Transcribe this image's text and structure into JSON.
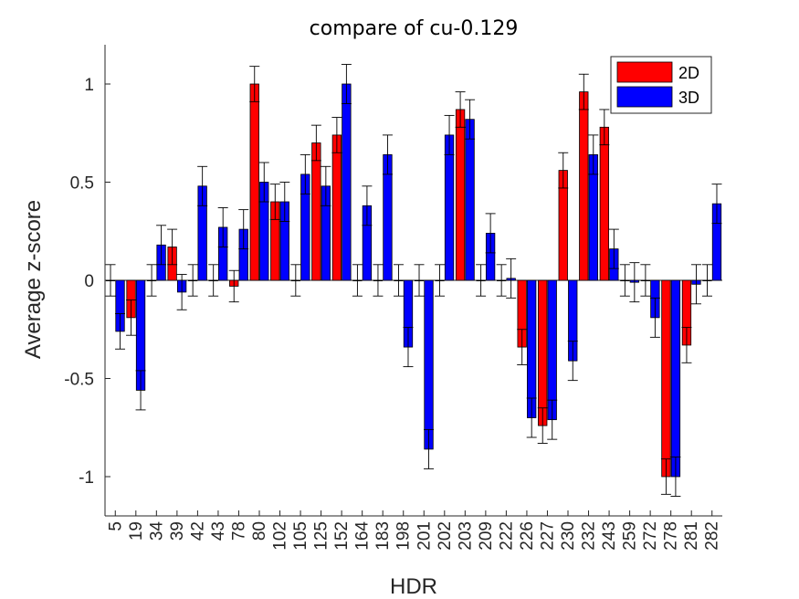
{
  "chart_data": {
    "type": "bar",
    "title": "compare of cu-0.129",
    "xlabel": "HDR",
    "ylabel": "Average z-score",
    "ylim": [
      -1.2,
      1.2
    ],
    "yticks": [
      -1,
      -0.5,
      0,
      0.5,
      1
    ],
    "ytick_labels": [
      "-1",
      "-0.5",
      "0",
      "0.5",
      "1"
    ],
    "grid": false,
    "legend_position": "top-right",
    "categories": [
      "5",
      "19",
      "34",
      "39",
      "42",
      "43",
      "78",
      "80",
      "102",
      "105",
      "125",
      "152",
      "164",
      "183",
      "198",
      "201",
      "202",
      "203",
      "209",
      "222",
      "226",
      "227",
      "230",
      "232",
      "243",
      "259",
      "272",
      "278",
      "281",
      "282"
    ],
    "series": [
      {
        "name": "2D",
        "color": "#ff0000",
        "values": [
          0,
          -0.19,
          0,
          0.17,
          0,
          0,
          -0.03,
          1.0,
          0.4,
          0,
          0.7,
          0.74,
          0,
          0,
          0,
          0,
          0,
          0.87,
          0,
          0,
          -0.34,
          -0.74,
          0.56,
          0.96,
          0.78,
          0,
          0,
          -1.0,
          -0.33,
          0
        ],
        "errors": [
          0.08,
          0.09,
          0.08,
          0.09,
          0.08,
          0.08,
          0.08,
          0.09,
          0.09,
          0.08,
          0.09,
          0.09,
          0.08,
          0.08,
          0.08,
          0.08,
          0.08,
          0.09,
          0.08,
          0.08,
          0.09,
          0.09,
          0.09,
          0.09,
          0.09,
          0.08,
          0.08,
          0.09,
          0.09,
          0.08
        ]
      },
      {
        "name": "3D",
        "color": "#0000ff",
        "values": [
          -0.26,
          -0.56,
          0.18,
          -0.06,
          0.48,
          0.27,
          0.26,
          0.5,
          0.4,
          0.54,
          0.48,
          1.0,
          0.38,
          0.64,
          -0.34,
          -0.86,
          0.74,
          0.82,
          0.24,
          0.01,
          -0.7,
          -0.71,
          -0.41,
          0.64,
          0.16,
          -0.01,
          -0.19,
          -1.0,
          -0.02,
          0.39
        ],
        "errors": [
          0.09,
          0.1,
          0.1,
          0.09,
          0.1,
          0.1,
          0.1,
          0.1,
          0.1,
          0.1,
          0.1,
          0.1,
          0.1,
          0.1,
          0.1,
          0.1,
          0.1,
          0.1,
          0.1,
          0.1,
          0.1,
          0.1,
          0.1,
          0.1,
          0.1,
          0.1,
          0.1,
          0.1,
          0.1,
          0.1
        ]
      }
    ]
  }
}
